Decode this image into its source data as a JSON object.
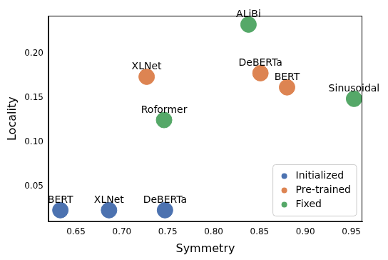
{
  "chart_data": {
    "type": "scatter",
    "x_label": "Symmetry",
    "y_label": "Locality",
    "xlim": [
      0.62,
      0.962
    ],
    "ylim": [
      0.01,
      0.243
    ],
    "xticks": [
      {
        "value": 0.65,
        "label": "0.65"
      },
      {
        "value": 0.7,
        "label": "0.70"
      },
      {
        "value": 0.75,
        "label": "0.75"
      },
      {
        "value": 0.8,
        "label": "0.80"
      },
      {
        "value": 0.85,
        "label": "0.85"
      },
      {
        "value": 0.9,
        "label": "0.90"
      },
      {
        "value": 0.95,
        "label": "0.95"
      }
    ],
    "yticks": [
      0.05,
      {
        "value": 0.1,
        "label": "0.10"
      },
      0.15,
      {
        "value": 0.2,
        "label": "0.20"
      }
    ],
    "grid": false,
    "legend": "lower right",
    "marker": "circle",
    "series": [
      {
        "name": "Initialized",
        "color": "#4c72b0",
        "x": [
          0.633,
          0.686,
          0.747
        ],
        "values": [
          0.023,
          0.023,
          0.023
        ],
        "point_labels": [
          "BERT",
          "XLNet",
          "DeBERTa"
        ]
      },
      {
        "name": "Pre-trained",
        "color": "#dd8452",
        "x": [
          0.727,
          0.851,
          0.88
        ],
        "values": [
          0.174,
          0.178,
          0.162
        ],
        "point_labels": [
          "XLNet",
          "DeBERTa",
          "BERT"
        ]
      },
      {
        "name": "Fixed",
        "color": "#55a868",
        "x": [
          0.746,
          0.838,
          0.953
        ],
        "values": [
          0.125,
          0.233,
          0.149
        ],
        "point_labels": [
          "Roformer",
          "ALiBi",
          "Sinusoidal"
        ]
      }
    ]
  }
}
